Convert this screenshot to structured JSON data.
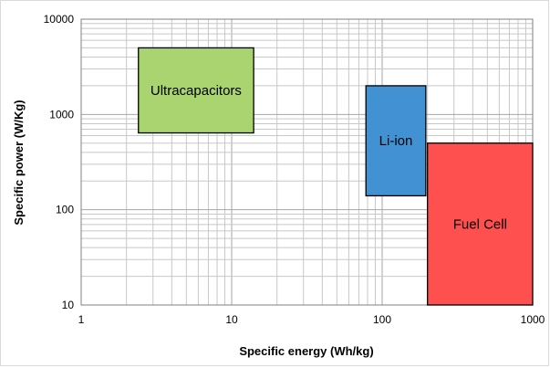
{
  "chart_data": {
    "type": "area",
    "title": "",
    "xlabel": "Specific energy (Wh/kg)",
    "ylabel": "Specific power (W/Kg)",
    "xscale": "log",
    "yscale": "log",
    "xlim": [
      1,
      1000
    ],
    "ylim": [
      10,
      10000
    ],
    "grid": true,
    "x_ticks": [
      "1",
      "10",
      "100",
      "1000"
    ],
    "y_ticks": [
      "10",
      "100",
      "1000",
      "10000"
    ],
    "regions": [
      {
        "label": "Ultracapacitors",
        "x": [
          2.4,
          14
        ],
        "y": [
          640,
          5000
        ],
        "color": "#a9d46f"
      },
      {
        "label": "Li-ion",
        "x": [
          78,
          195
        ],
        "y": [
          140,
          2000
        ],
        "color": "#4291d2"
      },
      {
        "label": "Fuel Cell",
        "x": [
          200,
          1000
        ],
        "y": [
          10,
          500
        ],
        "color": "#ff5050"
      }
    ]
  }
}
